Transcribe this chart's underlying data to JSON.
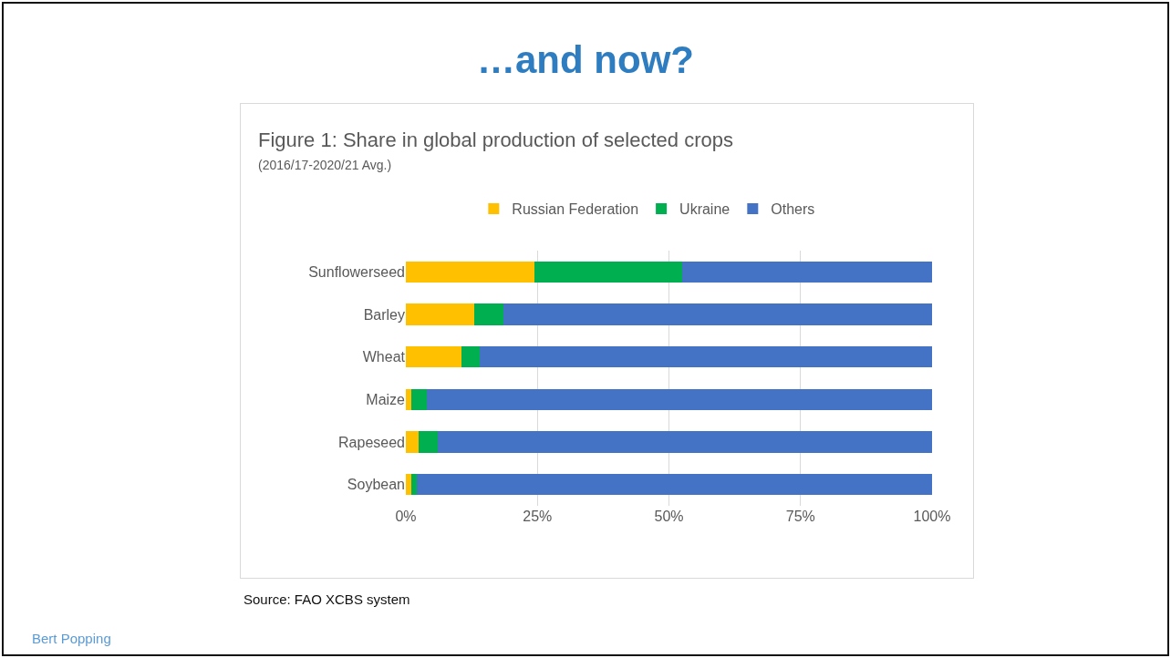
{
  "chart_data": {
    "type": "bar",
    "orientation": "horizontal",
    "stacked": true,
    "title": "…and now?",
    "subtitle": "Figure 1: Share in global production of selected crops",
    "annotations": [
      "(2016/17-2020/21 Avg.)",
      "Source: FAO XCBS system",
      "Bert Popping"
    ],
    "categories": [
      "Sunflowerseed",
      "Barley",
      "Wheat",
      "Maize",
      "Rapeseed",
      "Soybean"
    ],
    "series": [
      {
        "name": "Russian Federation",
        "color": "#ffc000",
        "values": [
          24.5,
          13,
          10.5,
          1,
          2.5,
          1
        ]
      },
      {
        "name": "Ukraine",
        "color": "#00b050",
        "values": [
          28,
          5.5,
          3.5,
          3,
          3.5,
          1
        ]
      },
      {
        "name": "Others",
        "color": "#4472c4",
        "values": [
          47.5,
          81.5,
          86,
          96,
          94,
          98
        ]
      }
    ],
    "xlim": [
      0,
      100
    ],
    "xticks": [
      {
        "value": 0,
        "label": "0%"
      },
      {
        "value": 25,
        "label": "25%"
      },
      {
        "value": 50,
        "label": "50%"
      },
      {
        "value": 75,
        "label": "75%"
      },
      {
        "value": 100,
        "label": "100%"
      }
    ],
    "grid": "x",
    "legend": "top"
  }
}
